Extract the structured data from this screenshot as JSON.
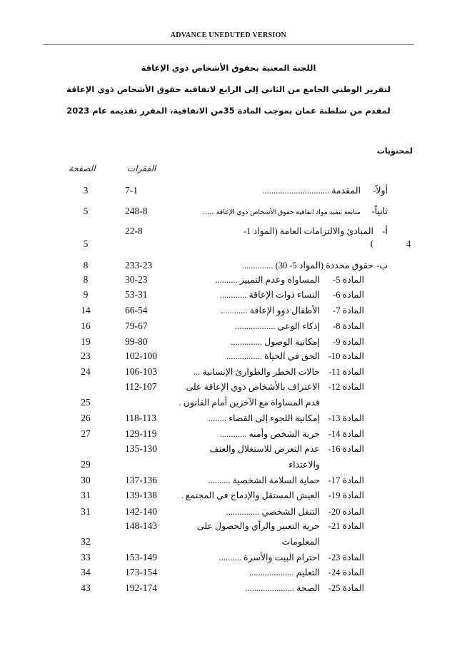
{
  "header": "ADVANCE UNEDUTED VERSION",
  "titles": [
    "اللجنة المعنية بحقوق الأشخاص ذوي الإعاقة",
    "لتقرير الوطني الجامع من الثاني إلى الرابع لاتفاقية حقوق الأشخاص ذوي الإعاقة",
    "لمقدم من سلطنة عمان بموجب المادة 35من الاتفاقية، المقرر تقديمه عام 2023"
  ],
  "toc_title": "لمحتويات",
  "columns": {
    "paragraphs": "الفقرات",
    "page": "الصفحة"
  },
  "rows": [
    {
      "num": "أولاً-",
      "title": "المقدمة",
      "dots": "..............................",
      "paras": "7-1",
      "page": "3",
      "level": 0
    },
    {
      "num": "ثانياً-",
      "title": "متابعة تنفيذ مواد اتفاقية حقوق الأشخاص ذوي الإعاقة",
      "dots": ".....",
      "paras": "248-8",
      "page": "5",
      "level": 0,
      "small": true
    },
    {
      "num": "أ-",
      "title": "المبادئ والالتزامات العامة (المواد 1-",
      "dots": "",
      "paras": "22-8",
      "page": "",
      "level": 1
    },
    {
      "num": "",
      "title": ")",
      "dots": "",
      "paras": "",
      "page": "5",
      "level": 1,
      "extra": "4"
    },
    {
      "num": "ب-",
      "title": "حقوق محددة (المواد 5- 30)",
      "dots": "..............",
      "paras": "233-23",
      "page": "8",
      "level": 1
    },
    {
      "num": "المادة 5-",
      "title": "المساواة وعدم التمييز",
      "dots": "..........",
      "paras": "30-23",
      "page": "8",
      "level": 2
    },
    {
      "num": "المادة 6-",
      "title": "النساء ذوات الإعاقة",
      "dots": "............",
      "paras": "53-31",
      "page": "9",
      "level": 2
    },
    {
      "num": "المادة 7-",
      "title": "الأطفال ذوو الإعاقة",
      "dots": "............",
      "paras": "66-54",
      "page": "14",
      "level": 2
    },
    {
      "num": "المادة 8-",
      "title": "إذكاء الوعي",
      "dots": "..................",
      "paras": "79-67",
      "page": "16",
      "level": 2
    },
    {
      "num": "المادة 9-",
      "title": "إمكانية الوصول",
      "dots": "..............",
      "paras": "99-80",
      "page": "19",
      "level": 2
    },
    {
      "num": "المادة 10-",
      "title": "الحق في الحياة",
      "dots": "................",
      "paras": "102-100",
      "page": "23",
      "level": 2
    },
    {
      "num": "المادة 11-",
      "title": "حالات الخطر والطوارئ الإنسانية",
      "dots": "...",
      "paras": "106-103",
      "page": "24",
      "level": 2
    },
    {
      "num": "المادة 12-",
      "title": "الاعتراف بالأشخاص ذوي الإعاقة على",
      "dots": "",
      "paras": "112-107",
      "page": "",
      "level": 2
    },
    {
      "num": "",
      "title": "قدم المساواة مع الآخرين أمام القانون .",
      "dots": "",
      "paras": "",
      "page": "25",
      "level": 2
    },
    {
      "num": "المادة 13-",
      "title": "إمكانية اللجوء إلى القضاء",
      "dots": "........",
      "paras": "118-113",
      "page": "26",
      "level": 2
    },
    {
      "num": "المادة 14-",
      "title": "حرية الشخص وأمنه",
      "dots": "............",
      "paras": "129-119",
      "page": "27",
      "level": 2
    },
    {
      "num": "المادة 16-",
      "title": "عدم التعرض للاستغلال والعنف",
      "dots": "",
      "paras": "135-130",
      "page": "",
      "level": 2
    },
    {
      "num": "",
      "title": "والاعتداء",
      "dots": "",
      "paras": "",
      "page": "29",
      "level": 2
    },
    {
      "num": "المادة 17-",
      "title": "حماية السلامة الشخصية",
      "dots": "..........",
      "paras": "137-136",
      "page": "30",
      "level": 2
    },
    {
      "num": "المادة 19-",
      "title": "العيش المستقل والإدماج في المجتمع .",
      "dots": "",
      "paras": "139-138",
      "page": "31",
      "level": 2
    },
    {
      "num": "المادة 20-",
      "title": "التنقل الشخصي",
      "dots": "...............",
      "paras": "142-140",
      "page": "31",
      "level": 2
    },
    {
      "num": "المادة 21-",
      "title": "حرية التعبير والرأي والحصول على",
      "dots": "",
      "paras": "148-143",
      "page": "",
      "level": 2
    },
    {
      "num": "",
      "title": "المعلومات",
      "dots": "",
      "paras": "",
      "page": "32",
      "level": 2
    },
    {
      "num": "المادة 23-",
      "title": "احترام البيت والأسرة",
      "dots": "..........",
      "paras": "153-149",
      "page": "33",
      "level": 2
    },
    {
      "num": "المادة 24-",
      "title": "التعليم",
      "dots": "....................",
      "paras": "173-154",
      "page": "34",
      "level": 2
    },
    {
      "num": "المادة 25-",
      "title": "الصحة",
      "dots": "......................",
      "paras": "192-174",
      "page": "43",
      "level": 2
    }
  ]
}
